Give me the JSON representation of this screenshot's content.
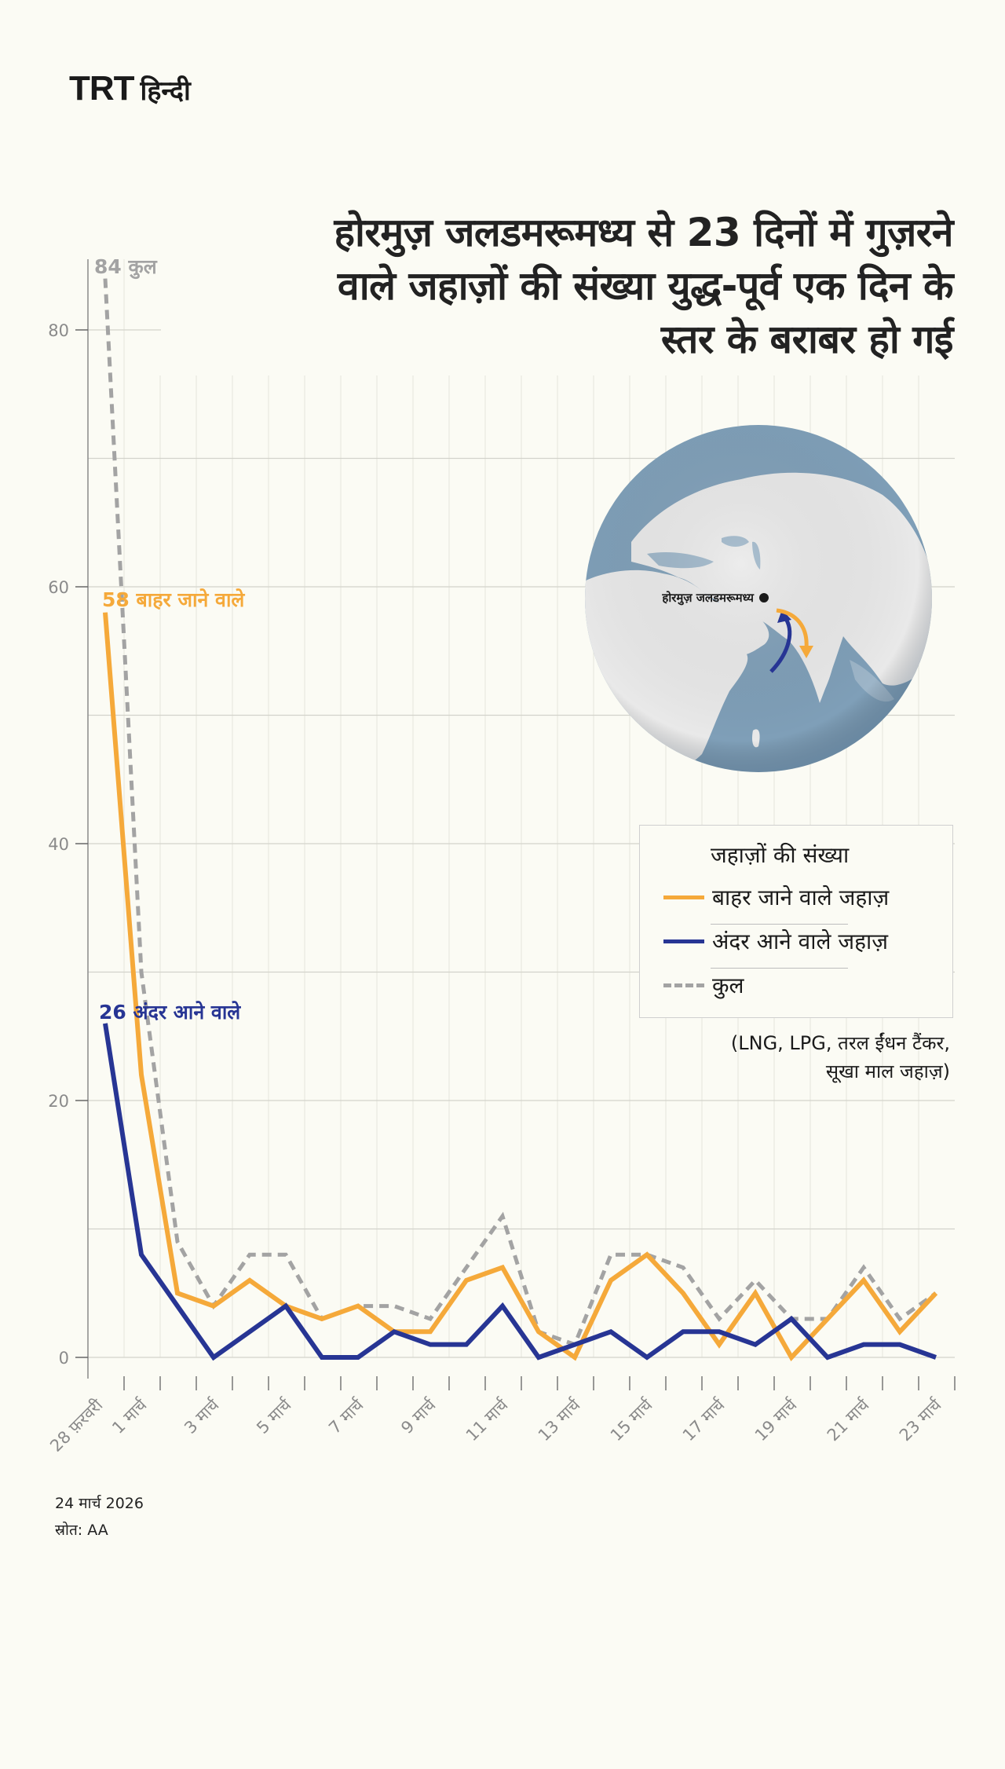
{
  "brand": {
    "logo_latin": "TRT",
    "logo_hindi": "हिन्दी"
  },
  "title": {
    "line1": "होरमुज़ जलडमरूमध्य से 23 दिनों में गुज़रने",
    "line2": "वाले जहाज़ों की संख्या युद्ध-पूर्व एक दिन के",
    "line3": "स्तर के बराबर हो गई"
  },
  "map": {
    "label": "होरमुज़ जलडमरूमध्य",
    "ocean_color": "#7f9fb8",
    "land_color": "#e9e9e9",
    "outbound_arrow_color": "#f5a93a",
    "inbound_arrow_color": "#273594"
  },
  "legend": {
    "title": "जहाज़ों की संख्या",
    "items": [
      {
        "label": "बाहर जाने वाले जहाज़",
        "color": "#f5a93a",
        "style": "solid"
      },
      {
        "label": "अंदर आने वाले जहाज़",
        "color": "#273594",
        "style": "solid"
      },
      {
        "label": "कुल",
        "color": "#a3a3a3",
        "style": "dashed"
      }
    ]
  },
  "note": {
    "line1": "(LNG, LPG, तरल ईंधन टैंकर,",
    "line2": "सूखा माल जहाज़)"
  },
  "annotations": {
    "total": "84 कुल",
    "outbound": "58 बाहर जाने वाले",
    "inbound": "26 अंदर आने वाले"
  },
  "footer": {
    "date": "24 मार्च 2026",
    "source": "स्रोत: AA"
  },
  "chart_data": {
    "type": "line",
    "title": "होरमुज़ जलडमरूमध्य से 23 दिनों में गुज़रने वाले जहाज़ों की संख्या युद्ध-पूर्व एक दिन के स्तर के बराबर हो गई",
    "xlabel": "",
    "ylabel": "जहाज़ों की संख्या",
    "ylim": [
      0,
      85
    ],
    "yticks": [
      0,
      20,
      40,
      60,
      80
    ],
    "grid": true,
    "legend_position": "right-middle",
    "x": [
      "28 फ़रवरी",
      "1 मार्च",
      "2 मार्च",
      "3 मार्च",
      "4 मार्च",
      "5 मार्च",
      "6 मार्च",
      "7 मार्च",
      "8 मार्च",
      "9 मार्च",
      "10 मार्च",
      "11 मार्च",
      "12 मार्च",
      "13 मार्च",
      "14 मार्च",
      "15 मार्च",
      "16 मार्च",
      "17 मार्च",
      "18 मार्च",
      "19 मार्च",
      "20 मार्च",
      "21 मार्च",
      "22 मार्च",
      "23 मार्च"
    ],
    "xtick_labels": [
      "28 फ़रवरी",
      "1 मार्च",
      "3 मार्च",
      "5 मार्च",
      "7 मार्च",
      "9 मार्च",
      "11 मार्च",
      "13 मार्च",
      "15 मार्च",
      "17 मार्च",
      "19 मार्च",
      "21 मार्च",
      "23 मार्च"
    ],
    "series": [
      {
        "name": "बाहर जाने वाले जहाज़",
        "color": "#f5a93a",
        "style": "solid",
        "values": [
          58,
          22,
          5,
          4,
          6,
          4,
          3,
          4,
          2,
          2,
          6,
          7,
          2,
          0,
          6,
          8,
          5,
          1,
          5,
          0,
          3,
          6,
          2,
          5
        ]
      },
      {
        "name": "अंदर आने वाले जहाज़",
        "color": "#273594",
        "style": "solid",
        "values": [
          26,
          8,
          4,
          0,
          2,
          4,
          0,
          0,
          2,
          1,
          1,
          4,
          0,
          1,
          2,
          0,
          2,
          2,
          1,
          3,
          0,
          1,
          1,
          0
        ]
      },
      {
        "name": "कुल",
        "color": "#a3a3a3",
        "style": "dashed",
        "values": [
          84,
          30,
          9,
          4,
          8,
          8,
          3,
          4,
          4,
          3,
          7,
          11,
          2,
          1,
          8,
          8,
          7,
          3,
          6,
          3,
          3,
          7,
          3,
          5
        ]
      }
    ]
  }
}
